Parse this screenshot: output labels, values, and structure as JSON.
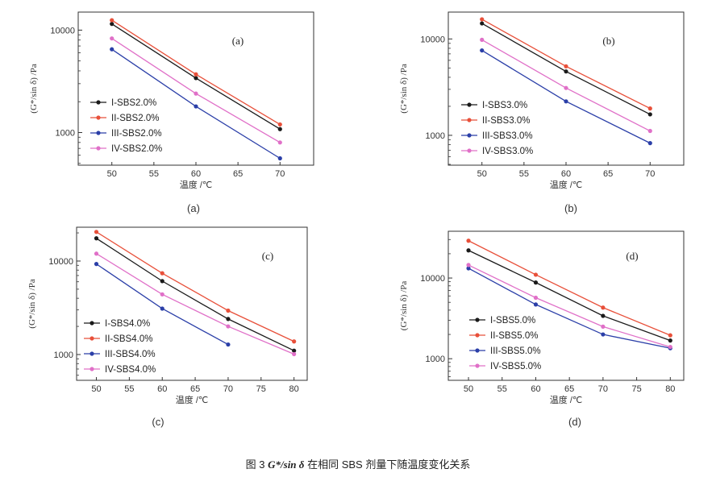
{
  "figure": {
    "caption_prefix": "图 3",
    "caption_symbol": "G*/sin δ",
    "caption_suffix": "在相同 SBS 剂量下随温度变化关系"
  },
  "chart_data": [
    {
      "type": "line",
      "tag": "(a)",
      "sublabel": "(a)",
      "xlabel": "温度 /℃",
      "ylabel": "(G*/sin δ) /Pa",
      "yscale": "log",
      "xlim": [
        46,
        74
      ],
      "ylim": [
        480,
        15000
      ],
      "xticks": [
        50,
        55,
        60,
        65,
        70
      ],
      "yticks": [
        1000,
        10000
      ],
      "x": [
        50,
        60,
        70
      ],
      "series": [
        {
          "name": "I-SBS2.0%",
          "color": "#1a1a1a",
          "values": [
            11500,
            3400,
            1080
          ]
        },
        {
          "name": "II-SBS2.0%",
          "color": "#e8503a",
          "values": [
            12500,
            3700,
            1200
          ]
        },
        {
          "name": "III-SBS2.0%",
          "color": "#2b3fa8",
          "values": [
            6500,
            1800,
            560
          ]
        },
        {
          "name": "IV-SBS2.0%",
          "color": "#e070c8",
          "values": [
            8300,
            2400,
            800
          ]
        }
      ]
    },
    {
      "type": "line",
      "tag": "(b)",
      "sublabel": "(b)",
      "xlabel": "温度 /℃",
      "ylabel": "(G*/sin δ) /Pa",
      "yscale": "log",
      "xlim": [
        46,
        74
      ],
      "ylim": [
        490,
        19000
      ],
      "xticks": [
        50,
        55,
        60,
        65,
        70
      ],
      "yticks": [
        1000,
        10000
      ],
      "x": [
        50,
        60,
        70
      ],
      "series": [
        {
          "name": "I-SBS3.0%",
          "color": "#1a1a1a",
          "values": [
            14500,
            4600,
            1650
          ]
        },
        {
          "name": "II-SBS3.0%",
          "color": "#e8503a",
          "values": [
            16000,
            5200,
            1900
          ]
        },
        {
          "name": "III-SBS3.0%",
          "color": "#2b3fa8",
          "values": [
            7600,
            2250,
            830
          ]
        },
        {
          "name": "IV-SBS3.0%",
          "color": "#e070c8",
          "values": [
            9800,
            3100,
            1110
          ]
        }
      ]
    },
    {
      "type": "line",
      "tag": "(c)",
      "sublabel": "(c)",
      "xlabel": "温度 /℃",
      "ylabel": "(G*/sin δ) /Pa",
      "yscale": "log",
      "xlim": [
        47,
        82
      ],
      "ylim": [
        530,
        23000
      ],
      "xticks": [
        50,
        55,
        60,
        65,
        70,
        75,
        80
      ],
      "yticks": [
        1000,
        10000
      ],
      "x": [
        50,
        60,
        70,
        80
      ],
      "series": [
        {
          "name": "I-SBS4.0%",
          "color": "#1a1a1a",
          "values": [
            17500,
            6100,
            2400,
            1100
          ]
        },
        {
          "name": "II-SBS4.0%",
          "color": "#e8503a",
          "values": [
            20500,
            7400,
            2950,
            1380
          ]
        },
        {
          "name": "III-SBS4.0%",
          "color": "#2b3fa8",
          "values": [
            9300,
            3100,
            1280,
            null
          ]
        },
        {
          "name": "IV-SBS4.0%",
          "color": "#e070c8",
          "values": [
            12000,
            4400,
            2000,
            1010
          ]
        }
      ]
    },
    {
      "type": "line",
      "tag": "(d)",
      "sublabel": "(d)",
      "xlabel": "温度 /℃",
      "ylabel": "(G*/sin δ) /Pa",
      "yscale": "log",
      "xlim": [
        47,
        82
      ],
      "ylim": [
        540,
        38000
      ],
      "xticks": [
        50,
        55,
        60,
        65,
        70,
        75,
        80
      ],
      "yticks": [
        1000,
        10000
      ],
      "x": [
        50,
        60,
        70,
        80
      ],
      "series": [
        {
          "name": "I-SBS5.0%",
          "color": "#1a1a1a",
          "values": [
            22000,
            8800,
            3400,
            1680
          ]
        },
        {
          "name": "II-SBS5.0%",
          "color": "#e8503a",
          "values": [
            29000,
            11000,
            4300,
            1950
          ]
        },
        {
          "name": "III-SBS5.0%",
          "color": "#2b3fa8",
          "values": [
            13200,
            4700,
            2000,
            1350
          ]
        },
        {
          "name": "IV-SBS5.0%",
          "color": "#e070c8",
          "values": [
            14500,
            5700,
            2500,
            1400
          ]
        }
      ]
    }
  ]
}
